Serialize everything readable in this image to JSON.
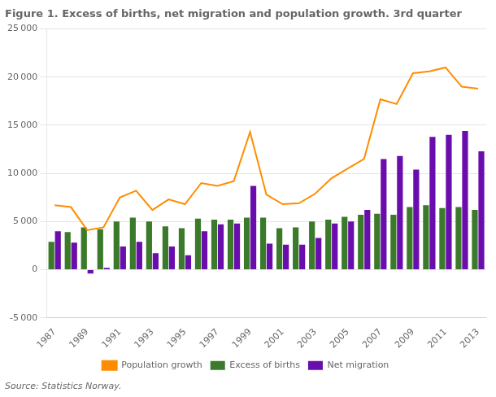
{
  "chart_data": {
    "type": "bar",
    "title": "Figure 1. Excess of births, net migration and population growth. 3rd quarter",
    "source": "Source: Statistics Norway.",
    "categories": [
      "1987",
      null,
      "1989",
      null,
      "1991",
      null,
      "1993",
      null,
      "1995",
      null,
      "1997",
      null,
      "1999",
      null,
      "2001",
      null,
      "2003",
      null,
      "2005",
      null,
      "2007",
      null,
      "2009",
      null,
      "2011",
      null,
      "2013"
    ],
    "series": [
      {
        "name": "Excess of births",
        "type": "bar",
        "color": "#3a7a2a",
        "values": [
          2900,
          3900,
          4400,
          4200,
          5000,
          5400,
          5000,
          4500,
          4300,
          5300,
          5200,
          5200,
          5400,
          5400,
          4300,
          4400,
          5000,
          5200,
          5500,
          5700,
          5800,
          5700,
          6500,
          6700,
          6400,
          6500,
          6200
        ]
      },
      {
        "name": "Net migration",
        "type": "bar",
        "color": "#6a0dad",
        "values": [
          4000,
          2800,
          -400,
          200,
          2400,
          2900,
          1700,
          2400,
          1500,
          4000,
          4700,
          4800,
          8700,
          2700,
          2600,
          2600,
          3300,
          4800,
          5000,
          6200,
          11500,
          11800,
          10400,
          13800,
          14000,
          14400,
          12300
        ]
      },
      {
        "name": "Population growth",
        "type": "line",
        "color": "#ff8c00",
        "marker": "none",
        "values": [
          6700,
          6500,
          4100,
          4400,
          7500,
          8200,
          6200,
          7300,
          6800,
          9000,
          8700,
          9200,
          14300,
          7800,
          6800,
          6900,
          7900,
          9500,
          10500,
          11500,
          17700,
          17200,
          20400,
          20600,
          21000,
          19000,
          18800
        ]
      }
    ],
    "ylim": [
      -5000,
      25000
    ],
    "yticks": [
      {
        "value": -5000,
        "label": "-5 000"
      },
      0,
      {
        "value": 5000,
        "label": "5 000"
      },
      {
        "value": 10000,
        "label": "10 000"
      },
      {
        "value": 15000,
        "label": "15 000"
      },
      {
        "value": 20000,
        "label": "20 000"
      },
      {
        "value": 25000,
        "label": "25 000"
      }
    ],
    "grid": true,
    "legend": "bottom"
  }
}
